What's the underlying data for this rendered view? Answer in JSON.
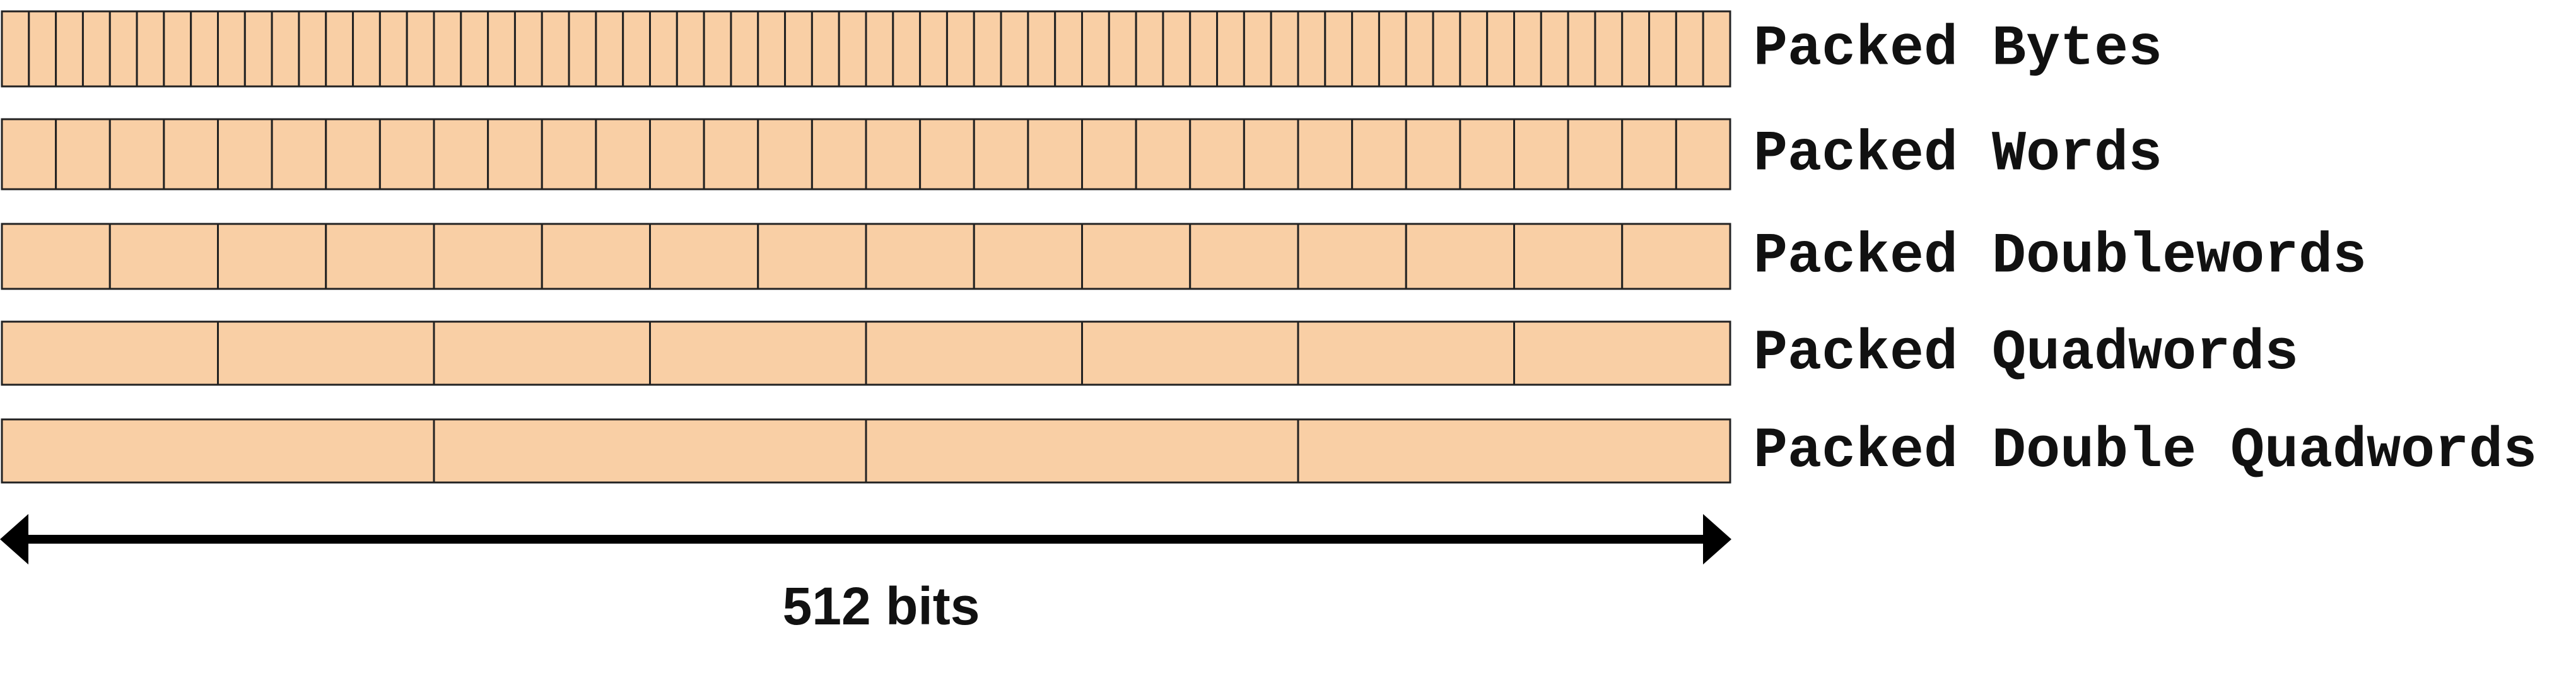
{
  "rows": [
    {
      "label": "Packed Bytes"
    },
    {
      "label": "Packed Words"
    },
    {
      "label": "Packed Doublewords"
    },
    {
      "label": "Packed Quadwords"
    },
    {
      "label": "Packed Double Quadwords"
    }
  ],
  "width_label": "512 bits"
}
